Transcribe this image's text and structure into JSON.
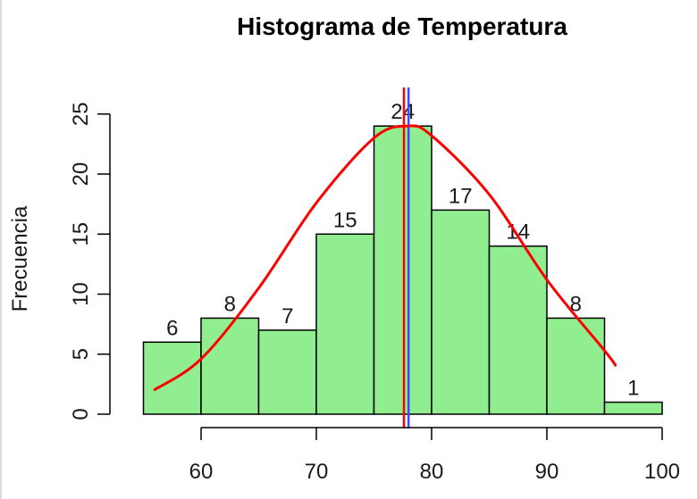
{
  "chart_data": {
    "type": "bar",
    "title": "Histograma de Temperatura",
    "xlabel": "",
    "ylabel": "Frecuencia",
    "bin_edges": [
      55,
      60,
      65,
      70,
      75,
      80,
      85,
      90,
      95,
      100
    ],
    "values": [
      6,
      8,
      7,
      15,
      24,
      17,
      14,
      8,
      1
    ],
    "data_labels": [
      "6",
      "8",
      "7",
      "15",
      "24",
      "17",
      "14",
      "8",
      "1"
    ],
    "xlim": [
      55,
      100
    ],
    "ylim": [
      0,
      25
    ],
    "x_ticks": [
      60,
      70,
      80,
      90,
      100
    ],
    "y_ticks": [
      0,
      5,
      10,
      15,
      20,
      25
    ],
    "grid": false,
    "bar_color": "#90EE90",
    "overlays": {
      "density_curve": {
        "color": "#ff0000",
        "x": [
          55.9,
          60,
          65,
          70,
          75,
          77.9,
          80,
          85,
          90,
          95,
          96
        ],
        "y": [
          2,
          4.6,
          10.5,
          17.6,
          23,
          24,
          23.2,
          18.3,
          11.2,
          5.3,
          4
        ]
      },
      "mean_line": {
        "x": 77.6,
        "color": "#ff0000"
      },
      "median_line": {
        "x": 78.0,
        "color": "#3f48ff"
      }
    }
  }
}
